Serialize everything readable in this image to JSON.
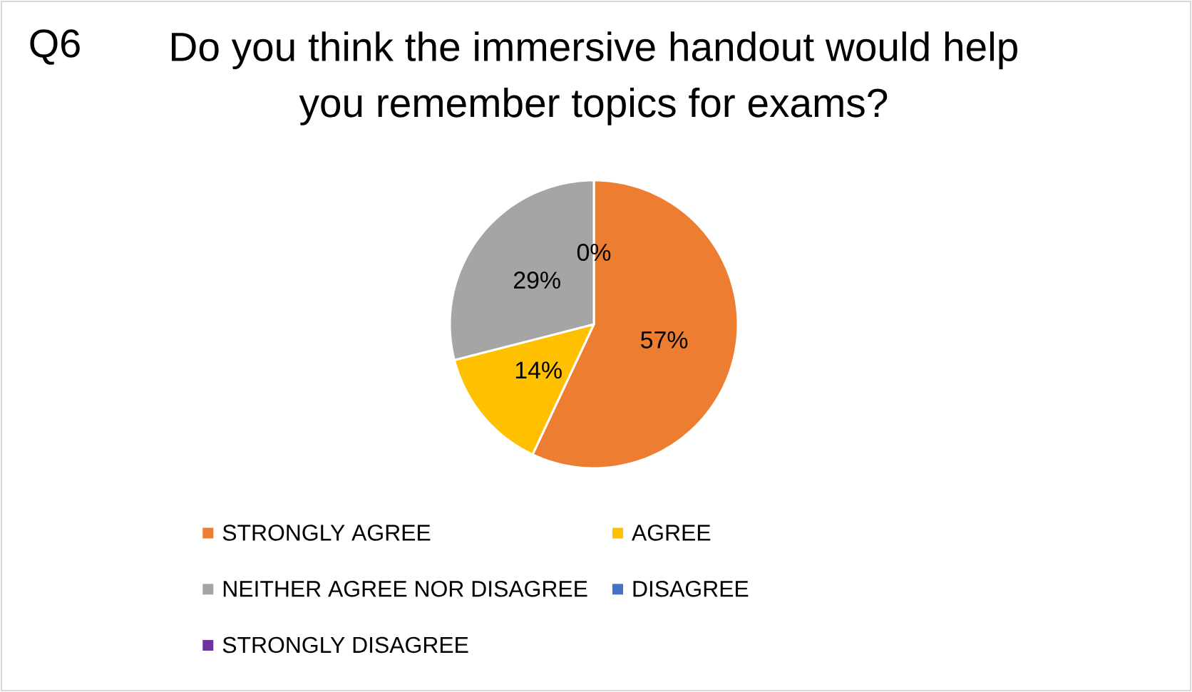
{
  "chart_data": {
    "type": "pie",
    "title": "Do you think the immersive handout would help you remember topics for exams?",
    "annotations": [
      "Q6"
    ],
    "categories": [
      "STRONGLY AGREE",
      "AGREE",
      "NEITHER AGREE NOR DISAGREE",
      "DISAGREE",
      "STRONGLY DISAGREE"
    ],
    "values": [
      57,
      14,
      29,
      0,
      0
    ],
    "colors": [
      "#ed7d31",
      "#ffc000",
      "#a5a5a5",
      "#4472c4",
      "#7030a0"
    ],
    "value_labels": [
      "57%",
      "14%",
      "29%",
      "0%",
      null
    ],
    "legend": "bottom"
  }
}
